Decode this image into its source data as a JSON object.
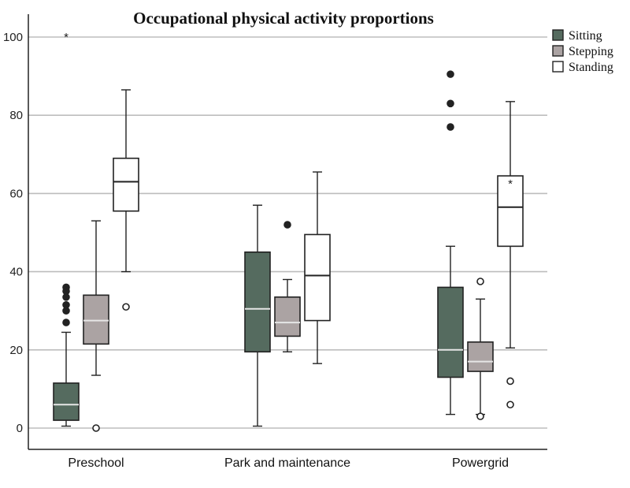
{
  "chart_data": {
    "type": "boxplot",
    "title": "Occupational physical activity proportions",
    "xlabel": "",
    "ylabel": "",
    "ylim": [
      -5,
      107
    ],
    "yticks": [
      0,
      20,
      40,
      60,
      80,
      100
    ],
    "grid": true,
    "legend_position": "top-right",
    "categories": [
      "Preschool",
      "Park and maintenance",
      "Powergrid"
    ],
    "series": [
      {
        "name": "Sitting",
        "color": "#556b5f",
        "boxes": [
          {
            "min": 0.5,
            "q1": 2,
            "median": 6,
            "q3": 11.5,
            "max": 24.5,
            "outliers": [
              27,
              30,
              31.5,
              33.5,
              35,
              36
            ],
            "extremes": [
              100
            ]
          },
          {
            "min": 0.5,
            "q1": 19.5,
            "median": 30.5,
            "q3": 45,
            "max": 57,
            "outliers": [],
            "extremes": []
          },
          {
            "min": 3.5,
            "q1": 13,
            "median": 20,
            "q3": 36,
            "max": 46.5,
            "outliers": [
              77,
              83,
              90.5
            ],
            "extremes": []
          }
        ]
      },
      {
        "name": "Stepping",
        "color": "#aba3a3",
        "boxes": [
          {
            "min": 13.5,
            "q1": 21.5,
            "median": 27.5,
            "q3": 34,
            "max": 53,
            "outliers": [
              0
            ],
            "extremes": []
          },
          {
            "min": 19.5,
            "q1": 23.5,
            "median": 27,
            "q3": 33.5,
            "max": 38,
            "outliers": [
              52
            ],
            "extremes": []
          },
          {
            "min": 3.5,
            "q1": 14.5,
            "median": 17,
            "q3": 22,
            "max": 33,
            "outliers": [
              3,
              37.5
            ],
            "extremes": []
          }
        ]
      },
      {
        "name": "Standing",
        "color": "#ffffff",
        "boxes": [
          {
            "min": 40,
            "q1": 55.5,
            "median": 63,
            "q3": 69,
            "max": 86.5,
            "outliers": [
              31
            ],
            "extremes": []
          },
          {
            "min": 16.5,
            "q1": 27.5,
            "median": 39,
            "q3": 49.5,
            "max": 65.5,
            "outliers": [],
            "extremes": []
          },
          {
            "min": 20.5,
            "q1": 46.5,
            "median": 56.5,
            "q3": 64.5,
            "max": 83.5,
            "outliers": [
              6,
              12
            ],
            "extremes": [
              62.5
            ]
          }
        ]
      }
    ]
  }
}
